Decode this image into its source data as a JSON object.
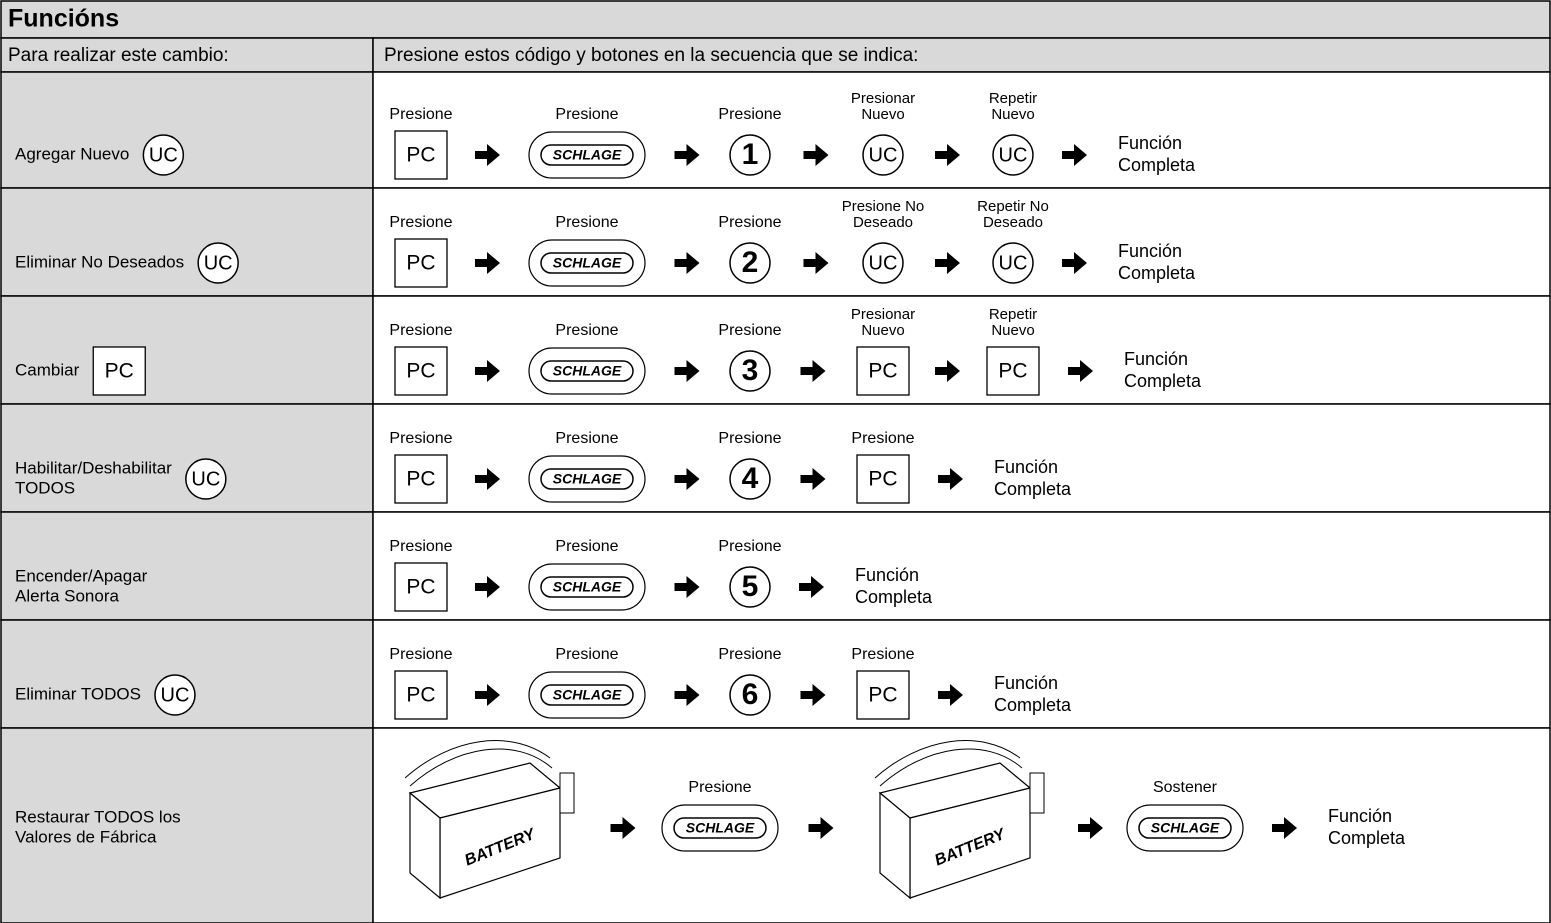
{
  "title": "Funcións",
  "header": [
    "Para realizar este cambio:",
    "Presione estos código y botones en la secuencia que se indica:"
  ],
  "rows": [
    {
      "label": [
        "Agregar Nuevo"
      ],
      "label_key": {
        "key": "UC",
        "shape": "circle"
      },
      "steps": [
        {
          "caption": [
            "Presione"
          ],
          "key": "PC",
          "shape": "box"
        },
        {
          "caption": [
            "Presione"
          ],
          "key": "SCHLAGE",
          "shape": "oval"
        },
        {
          "caption": [
            "Presione"
          ],
          "key": "1",
          "shape": "circle"
        },
        {
          "caption": [
            "Presionar",
            "Nuevo"
          ],
          "key": "UC",
          "shape": "circle"
        },
        {
          "caption": [
            "Repetir",
            "Nuevo"
          ],
          "key": "UC",
          "shape": "circle"
        }
      ],
      "result": [
        "Función",
        "Completa"
      ]
    },
    {
      "label": [
        "Eliminar No Deseados"
      ],
      "label_key": {
        "key": "UC",
        "shape": "circle"
      },
      "steps": [
        {
          "caption": [
            "Presione"
          ],
          "key": "PC",
          "shape": "box"
        },
        {
          "caption": [
            "Presione"
          ],
          "key": "SCHLAGE",
          "shape": "oval"
        },
        {
          "caption": [
            "Presione"
          ],
          "key": "2",
          "shape": "circle"
        },
        {
          "caption": [
            "Presione No",
            "Deseado"
          ],
          "key": "UC",
          "shape": "circle"
        },
        {
          "caption": [
            "Repetir No",
            "Deseado"
          ],
          "key": "UC",
          "shape": "circle"
        }
      ],
      "result": [
        "Función",
        "Completa"
      ]
    },
    {
      "label": [
        "Cambiar"
      ],
      "label_key": {
        "key": "PC",
        "shape": "box"
      },
      "steps": [
        {
          "caption": [
            "Presione"
          ],
          "key": "PC",
          "shape": "box"
        },
        {
          "caption": [
            "Presione"
          ],
          "key": "SCHLAGE",
          "shape": "oval"
        },
        {
          "caption": [
            "Presione"
          ],
          "key": "3",
          "shape": "circle"
        },
        {
          "caption": [
            "Presionar",
            "Nuevo"
          ],
          "key": "PC",
          "shape": "box"
        },
        {
          "caption": [
            "Repetir",
            "Nuevo"
          ],
          "key": "PC",
          "shape": "box"
        }
      ],
      "result": [
        "Función",
        "Completa"
      ]
    },
    {
      "label": [
        "Habilitar/Deshabilitar",
        "TODOS"
      ],
      "label_key": {
        "key": "UC",
        "shape": "circle"
      },
      "steps": [
        {
          "caption": [
            "Presione"
          ],
          "key": "PC",
          "shape": "box"
        },
        {
          "caption": [
            "Presione"
          ],
          "key": "SCHLAGE",
          "shape": "oval"
        },
        {
          "caption": [
            "Presione"
          ],
          "key": "4",
          "shape": "circle"
        },
        {
          "caption": [
            "Presione"
          ],
          "key": "PC",
          "shape": "box"
        }
      ],
      "result": [
        "Función",
        "Completa"
      ]
    },
    {
      "label": [
        "Encender/Apagar",
        "Alerta Sonora"
      ],
      "steps": [
        {
          "caption": [
            "Presione"
          ],
          "key": "PC",
          "shape": "box"
        },
        {
          "caption": [
            "Presione"
          ],
          "key": "SCHLAGE",
          "shape": "oval"
        },
        {
          "caption": [
            "Presione"
          ],
          "key": "5",
          "shape": "circle"
        }
      ],
      "result": [
        "Función",
        "Completa"
      ]
    },
    {
      "label": [
        "Eliminar TODOS"
      ],
      "label_key": {
        "key": "UC",
        "shape": "circle"
      },
      "steps": [
        {
          "caption": [
            "Presione"
          ],
          "key": "PC",
          "shape": "box"
        },
        {
          "caption": [
            "Presione"
          ],
          "key": "SCHLAGE",
          "shape": "oval"
        },
        {
          "caption": [
            "Presione"
          ],
          "key": "6",
          "shape": "circle"
        },
        {
          "caption": [
            "Presione"
          ],
          "key": "PC",
          "shape": "box"
        }
      ],
      "result": [
        "Función",
        "Completa"
      ]
    },
    {
      "label": [
        "Restaurar TODOS los",
        "Valores de Fábrica"
      ],
      "steps": [
        {
          "key": "BATTERY",
          "shape": "battery"
        },
        {
          "caption": [
            "Presione"
          ],
          "key": "SCHLAGE",
          "shape": "oval"
        },
        {
          "key": "BATTERY",
          "shape": "battery"
        },
        {
          "caption": [
            "Sostener"
          ],
          "key": "SCHLAGE",
          "shape": "oval"
        }
      ],
      "result": [
        "Función",
        "Completa"
      ]
    }
  ]
}
